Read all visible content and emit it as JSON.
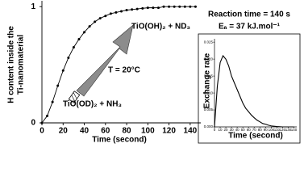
{
  "chart_data": [
    {
      "type": "line",
      "x_label": "Time (second)",
      "y_label": [
        "H content inside the",
        "Ti-nanomaterial"
      ],
      "annotations": [
        "TiO(OH)₂ + ND₃",
        "T = 20°C",
        "TiO(OD)₂ + NH₃"
      ],
      "x": [
        0,
        5,
        10,
        15,
        20,
        25,
        30,
        35,
        40,
        45,
        50,
        55,
        60,
        65,
        70,
        75,
        80,
        85,
        90,
        95,
        100,
        105,
        110,
        115,
        120,
        125,
        130,
        135,
        140,
        145
      ],
      "series": [
        {
          "color": "#000000",
          "values": [
            0,
            0.06,
            0.18,
            0.32,
            0.45,
            0.56,
            0.65,
            0.72,
            0.78,
            0.83,
            0.87,
            0.9,
            0.92,
            0.94,
            0.95,
            0.96,
            0.97,
            0.975,
            0.98,
            0.985,
            0.99,
            0.99,
            0.99,
            1,
            1,
            1,
            1,
            1,
            1,
            1
          ]
        }
      ],
      "markers": true,
      "xlim": [
        0,
        150
      ],
      "xticks": [
        0,
        20,
        40,
        60,
        80,
        100,
        120,
        140
      ],
      "ylim": [
        0,
        1.05
      ],
      "yticks": [
        0,
        1
      ]
    },
    {
      "type": "line",
      "x_label": "Time (second)",
      "y_label": [
        "Exchange rate"
      ],
      "annotations": [
        "Reaction time = 140 s",
        "Eₐ = 37 kJ.mol⁻¹"
      ],
      "x": [
        0,
        5,
        10,
        15,
        20,
        25,
        30,
        35,
        40,
        45,
        50,
        55,
        60,
        65,
        70,
        75,
        80,
        85,
        90,
        95,
        100,
        110,
        120,
        130,
        140
      ],
      "series": [
        {
          "color": "#000000",
          "values": [
            0,
            0.012,
            0.019,
            0.021,
            0.02,
            0.018,
            0.015,
            0.013,
            0.011,
            0.009,
            0.007,
            0.0055,
            0.0045,
            0.0035,
            0.0027,
            0.002,
            0.0015,
            0.001,
            0.0008,
            0.0005,
            0.0003,
            0.0001,
            0,
            0,
            0
          ]
        }
      ],
      "markers": false,
      "xlim": [
        0,
        145
      ],
      "xticks": [
        0,
        10,
        20,
        30,
        40,
        50,
        60,
        70,
        80,
        90,
        100,
        110,
        120,
        130,
        140
      ],
      "ylim": [
        0,
        0.026
      ],
      "yticks": [
        {
          "value": 0,
          "label": "0.000"
        },
        {
          "value": 0.005,
          "label": "0.005"
        },
        {
          "value": 0.01,
          "label": "0.010"
        },
        {
          "value": 0.015,
          "label": "0.015"
        },
        {
          "value": 0.02,
          "label": "0.020"
        },
        {
          "value": 0.025,
          "label": "0.025"
        }
      ]
    }
  ]
}
